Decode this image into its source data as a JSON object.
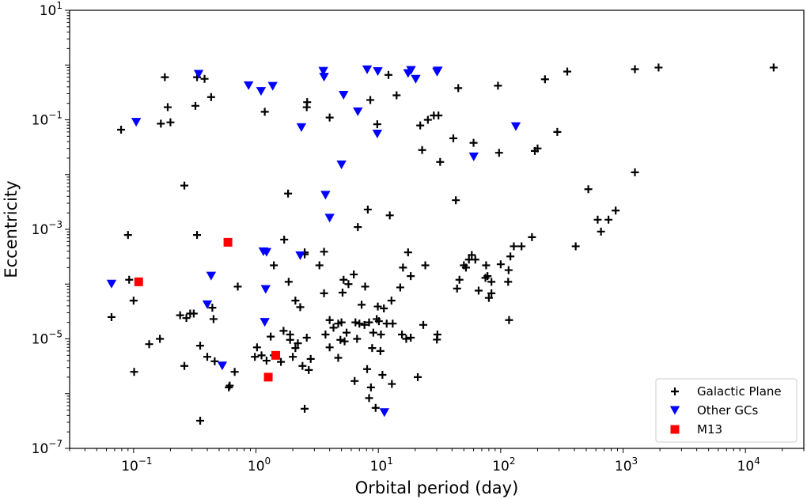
{
  "chart_data": {
    "type": "scatter",
    "title": "",
    "xlabel": "Orbital period (day)",
    "ylabel": "Eccentricity",
    "x_scale": "log",
    "y_scale": "log",
    "xlim": [
      0.03,
      30000
    ],
    "ylim": [
      1e-07,
      10
    ],
    "grid": false,
    "legend_position": "bottom-right",
    "x_ticks": [
      {
        "base": "10",
        "exp": "−1",
        "value": 0.1
      },
      {
        "base": "10",
        "exp": "0",
        "value": 1
      },
      {
        "base": "10",
        "exp": "1",
        "value": 10
      },
      {
        "base": "10",
        "exp": "2",
        "value": 100
      },
      {
        "base": "10",
        "exp": "3",
        "value": 1000
      },
      {
        "base": "10",
        "exp": "4",
        "value": 10000
      }
    ],
    "y_ticks": [
      {
        "base": "10",
        "exp": "−7",
        "value": 1e-07
      },
      {
        "base": "10",
        "exp": "−5",
        "value": 1e-05
      },
      {
        "base": "10",
        "exp": "−3",
        "value": 0.001
      },
      {
        "base": "10",
        "exp": "−1",
        "value": 0.1
      },
      {
        "base": "10",
        "exp": "1",
        "value": 10
      }
    ],
    "series": [
      {
        "name": "Galactic Plane",
        "marker": "plus",
        "color": "#000000",
        "points": [
          [
            0.066,
            2.5e-05
          ],
          [
            0.079,
            0.066
          ],
          [
            0.09,
            0.00079
          ],
          [
            0.092,
            0.00012
          ],
          [
            0.1,
            5e-05
          ],
          [
            0.101,
            2.5e-06
          ],
          [
            0.134,
            8e-06
          ],
          [
            0.164,
            1e-05
          ],
          [
            0.167,
            0.085
          ],
          [
            0.18,
            0.6
          ],
          [
            0.19,
            0.17
          ],
          [
            0.2,
            0.09
          ],
          [
            0.24,
            2.7e-05
          ],
          [
            0.26,
            0.0063
          ],
          [
            0.26,
            3.2e-06
          ],
          [
            0.27,
            2.4e-05
          ],
          [
            0.29,
            2.9e-05
          ],
          [
            0.31,
            2.9e-05
          ],
          [
            0.32,
            0.18
          ],
          [
            0.33,
            0.00079
          ],
          [
            0.33,
            0.6
          ],
          [
            0.35,
            3.2e-07
          ],
          [
            0.35,
            7.5e-06
          ],
          [
            0.38,
            0.56
          ],
          [
            0.4,
            4.7e-06
          ],
          [
            0.43,
            0.26
          ],
          [
            0.44,
            3.7e-05
          ],
          [
            0.45,
            2.3e-05
          ],
          [
            0.46,
            3.9e-06
          ],
          [
            0.6,
            1.3e-06
          ],
          [
            0.61,
            1.4e-06
          ],
          [
            0.67,
            2.5e-06
          ],
          [
            0.71,
            9e-05
          ],
          [
            0.98,
            4.7e-06
          ],
          [
            1.02,
            7e-06
          ],
          [
            1.11,
            5e-06
          ],
          [
            1.18,
            0.14
          ],
          [
            1.22,
            4e-06
          ],
          [
            1.32,
            1.1e-05
          ],
          [
            1.4,
            5e-06
          ],
          [
            1.4,
            0.00022
          ],
          [
            1.6,
            3.8e-06
          ],
          [
            1.68,
            1.4e-05
          ],
          [
            1.7,
            0.00065
          ],
          [
            1.83,
            0.0045
          ],
          [
            1.85,
            0.00011
          ],
          [
            1.9,
            9.6e-06
          ],
          [
            1.9,
            1.2e-05
          ],
          [
            2.0,
            4.7e-06
          ],
          [
            2.1,
            6.8e-06
          ],
          [
            2.1,
            5e-05
          ],
          [
            2.2,
            8.3e-06
          ],
          [
            2.3,
            3.8e-05
          ],
          [
            2.4,
            3.2e-06
          ],
          [
            2.5,
            0.00038
          ],
          [
            2.5,
            5.3e-07
          ],
          [
            2.5,
            0.00035
          ],
          [
            2.6,
            1.05e-05
          ],
          [
            2.6,
            0.17
          ],
          [
            2.62,
            0.21
          ],
          [
            2.7,
            2.7e-06
          ],
          [
            2.8,
            4.3e-06
          ],
          [
            3.3,
            0.00022
          ],
          [
            3.6,
            0.00039
          ],
          [
            3.6,
            6.8e-05
          ],
          [
            3.7,
            1.2e-05
          ],
          [
            4.0,
            0.11
          ],
          [
            4.0,
            7e-06
          ],
          [
            4.0,
            2.2e-05
          ],
          [
            4.3,
            1.6e-05
          ],
          [
            4.7,
            4.5e-06
          ],
          [
            4.7,
            1.9e-05
          ],
          [
            4.9,
            9.6e-06
          ],
          [
            5.0,
            2e-05
          ],
          [
            5.1,
            7e-05
          ],
          [
            5.2,
            0.00012
          ],
          [
            5.3,
            9e-06
          ],
          [
            5.5,
            1.3e-05
          ],
          [
            5.7,
            0.0001
          ],
          [
            6.3,
            0.00015
          ],
          [
            6.4,
            1.7e-06
          ],
          [
            6.5,
            2e-05
          ],
          [
            6.7,
            1e-05
          ],
          [
            6.8,
            0.0011
          ],
          [
            7.0,
            1.9e-05
          ],
          [
            7.3,
            4.2e-05
          ],
          [
            7.7,
            1.8e-05
          ],
          [
            7.8,
            9e-05
          ],
          [
            8.1,
            2.8e-06
          ],
          [
            8.2,
            0.0023
          ],
          [
            8.4,
            8.3e-07
          ],
          [
            8.4,
            2e-05
          ],
          [
            8.6,
            0.23
          ],
          [
            8.7,
            1.3e-06
          ],
          [
            8.9,
            6.8e-06
          ],
          [
            9.1,
            1.3e-05
          ],
          [
            9.5,
            5.5e-07
          ],
          [
            9.7,
            2.3e-05
          ],
          [
            9.8,
            0.083
          ],
          [
            9.9,
            3.9e-05
          ],
          [
            10.1,
            2.1e-05
          ],
          [
            10.4,
            6e-06
          ],
          [
            10.5,
            1.2e-05
          ],
          [
            10.8,
            2.2e-06
          ],
          [
            11.1,
            3.6e-05
          ],
          [
            11.7,
            1.9e-05
          ],
          [
            12.1,
            0.66
          ],
          [
            12.4,
            0.0018
          ],
          [
            12.8,
            5e-05
          ],
          [
            12.9,
            1.5e-06
          ],
          [
            13.1,
            1.9e-05
          ],
          [
            14.1,
            0.28
          ],
          [
            15.1,
            8.7e-05
          ],
          [
            15.9,
            0.0002
          ],
          [
            15.6,
            1.2e-05
          ],
          [
            16.9,
            1e-05
          ],
          [
            17.5,
            0.00038
          ],
          [
            18.4,
            1.05e-05
          ],
          [
            18.4,
            0.00014
          ],
          [
            21.0,
            2e-06
          ],
          [
            22.0,
            0.079
          ],
          [
            22.8,
            0.028
          ],
          [
            23.3,
            1.8e-05
          ],
          [
            24.2,
            0.00022
          ],
          [
            25.4,
            0.1
          ],
          [
            28.4,
            0.12
          ],
          [
            30.1,
            9.7e-06
          ],
          [
            30.4,
            1.2e-05
          ],
          [
            31.0,
            0.12
          ],
          [
            32.0,
            0.017
          ],
          [
            41.0,
            0.046
          ],
          [
            43.0,
            0.0034
          ],
          [
            44.0,
            8.3e-05
          ],
          [
            45.0,
            0.38
          ],
          [
            46.0,
            0.00012
          ],
          [
            50.0,
            0.00022
          ],
          [
            52.0,
            0.0002
          ],
          [
            55.0,
            0.00028
          ],
          [
            58.0,
            0.00034
          ],
          [
            60.0,
            0.038
          ],
          [
            62.0,
            0.00028
          ],
          [
            66.0,
            7.6e-05
          ],
          [
            75.0,
            0.00013
          ],
          [
            76.0,
            0.00022
          ],
          [
            78.0,
            0.00014
          ],
          [
            80.0,
            5.6e-05
          ],
          [
            84.0,
            6.8e-05
          ],
          [
            84.0,
            0.00011
          ],
          [
            95.0,
            0.42
          ],
          [
            97.0,
            0.025
          ],
          [
            100.0,
            0.00023
          ],
          [
            115.0,
            0.00011
          ],
          [
            116.0,
            0.00018
          ],
          [
            117.0,
            2.2e-05
          ],
          [
            120.0,
            0.00032
          ],
          [
            128.0,
            0.00049
          ],
          [
            148.0,
            0.00049
          ],
          [
            180.0,
            0.00072
          ],
          [
            190.0,
            0.027
          ],
          [
            200.0,
            0.03
          ],
          [
            230.0,
            0.55
          ],
          [
            290.0,
            0.06
          ],
          [
            350.0,
            0.76
          ],
          [
            410.0,
            0.00049
          ],
          [
            520.0,
            0.0054
          ],
          [
            620.0,
            0.0015
          ],
          [
            660.0,
            0.00091
          ],
          [
            760.0,
            0.0015
          ],
          [
            870.0,
            0.0022
          ],
          [
            1250.0,
            0.84
          ],
          [
            1250.0,
            0.011
          ],
          [
            1950.0,
            0.9
          ],
          [
            17000.0,
            0.9
          ]
        ]
      },
      {
        "name": "Other GCs",
        "marker": "triangle-down",
        "color": "#0000ff",
        "points": [
          [
            0.066,
            0.0001
          ],
          [
            0.105,
            0.09
          ],
          [
            0.34,
            0.68
          ],
          [
            0.4,
            4.2e-05
          ],
          [
            0.43,
            0.00014
          ],
          [
            0.53,
            3.2e-06
          ],
          [
            0.87,
            0.42
          ],
          [
            1.1,
            0.33
          ],
          [
            1.15,
            0.00039
          ],
          [
            1.2,
            8e-05
          ],
          [
            1.22,
            0.00038
          ],
          [
            1.18,
            2e-05
          ],
          [
            1.37,
            0.41
          ],
          [
            2.3,
            0.00033
          ],
          [
            2.35,
            0.072
          ],
          [
            3.55,
            0.77
          ],
          [
            3.6,
            0.6
          ],
          [
            3.7,
            0.0042
          ],
          [
            4.0,
            0.0016
          ],
          [
            5.0,
            0.015
          ],
          [
            5.2,
            0.28
          ],
          [
            6.8,
            0.14
          ],
          [
            8.1,
            0.82
          ],
          [
            9.8,
            0.055
          ],
          [
            9.9,
            0.76
          ],
          [
            11.2,
            4.5e-07
          ],
          [
            17.5,
            0.7
          ],
          [
            18.5,
            0.8
          ],
          [
            20.2,
            0.55
          ],
          [
            30.2,
            0.74
          ],
          [
            30.6,
            0.78
          ],
          [
            60.2,
            0.021
          ],
          [
            133.0,
            0.075
          ]
        ]
      },
      {
        "name": "M13",
        "marker": "square",
        "color": "#ff0000",
        "points": [
          [
            0.11,
            0.00011
          ],
          [
            0.59,
            0.00058
          ],
          [
            1.26,
            2e-06
          ],
          [
            1.45,
            5e-06
          ]
        ]
      }
    ]
  }
}
